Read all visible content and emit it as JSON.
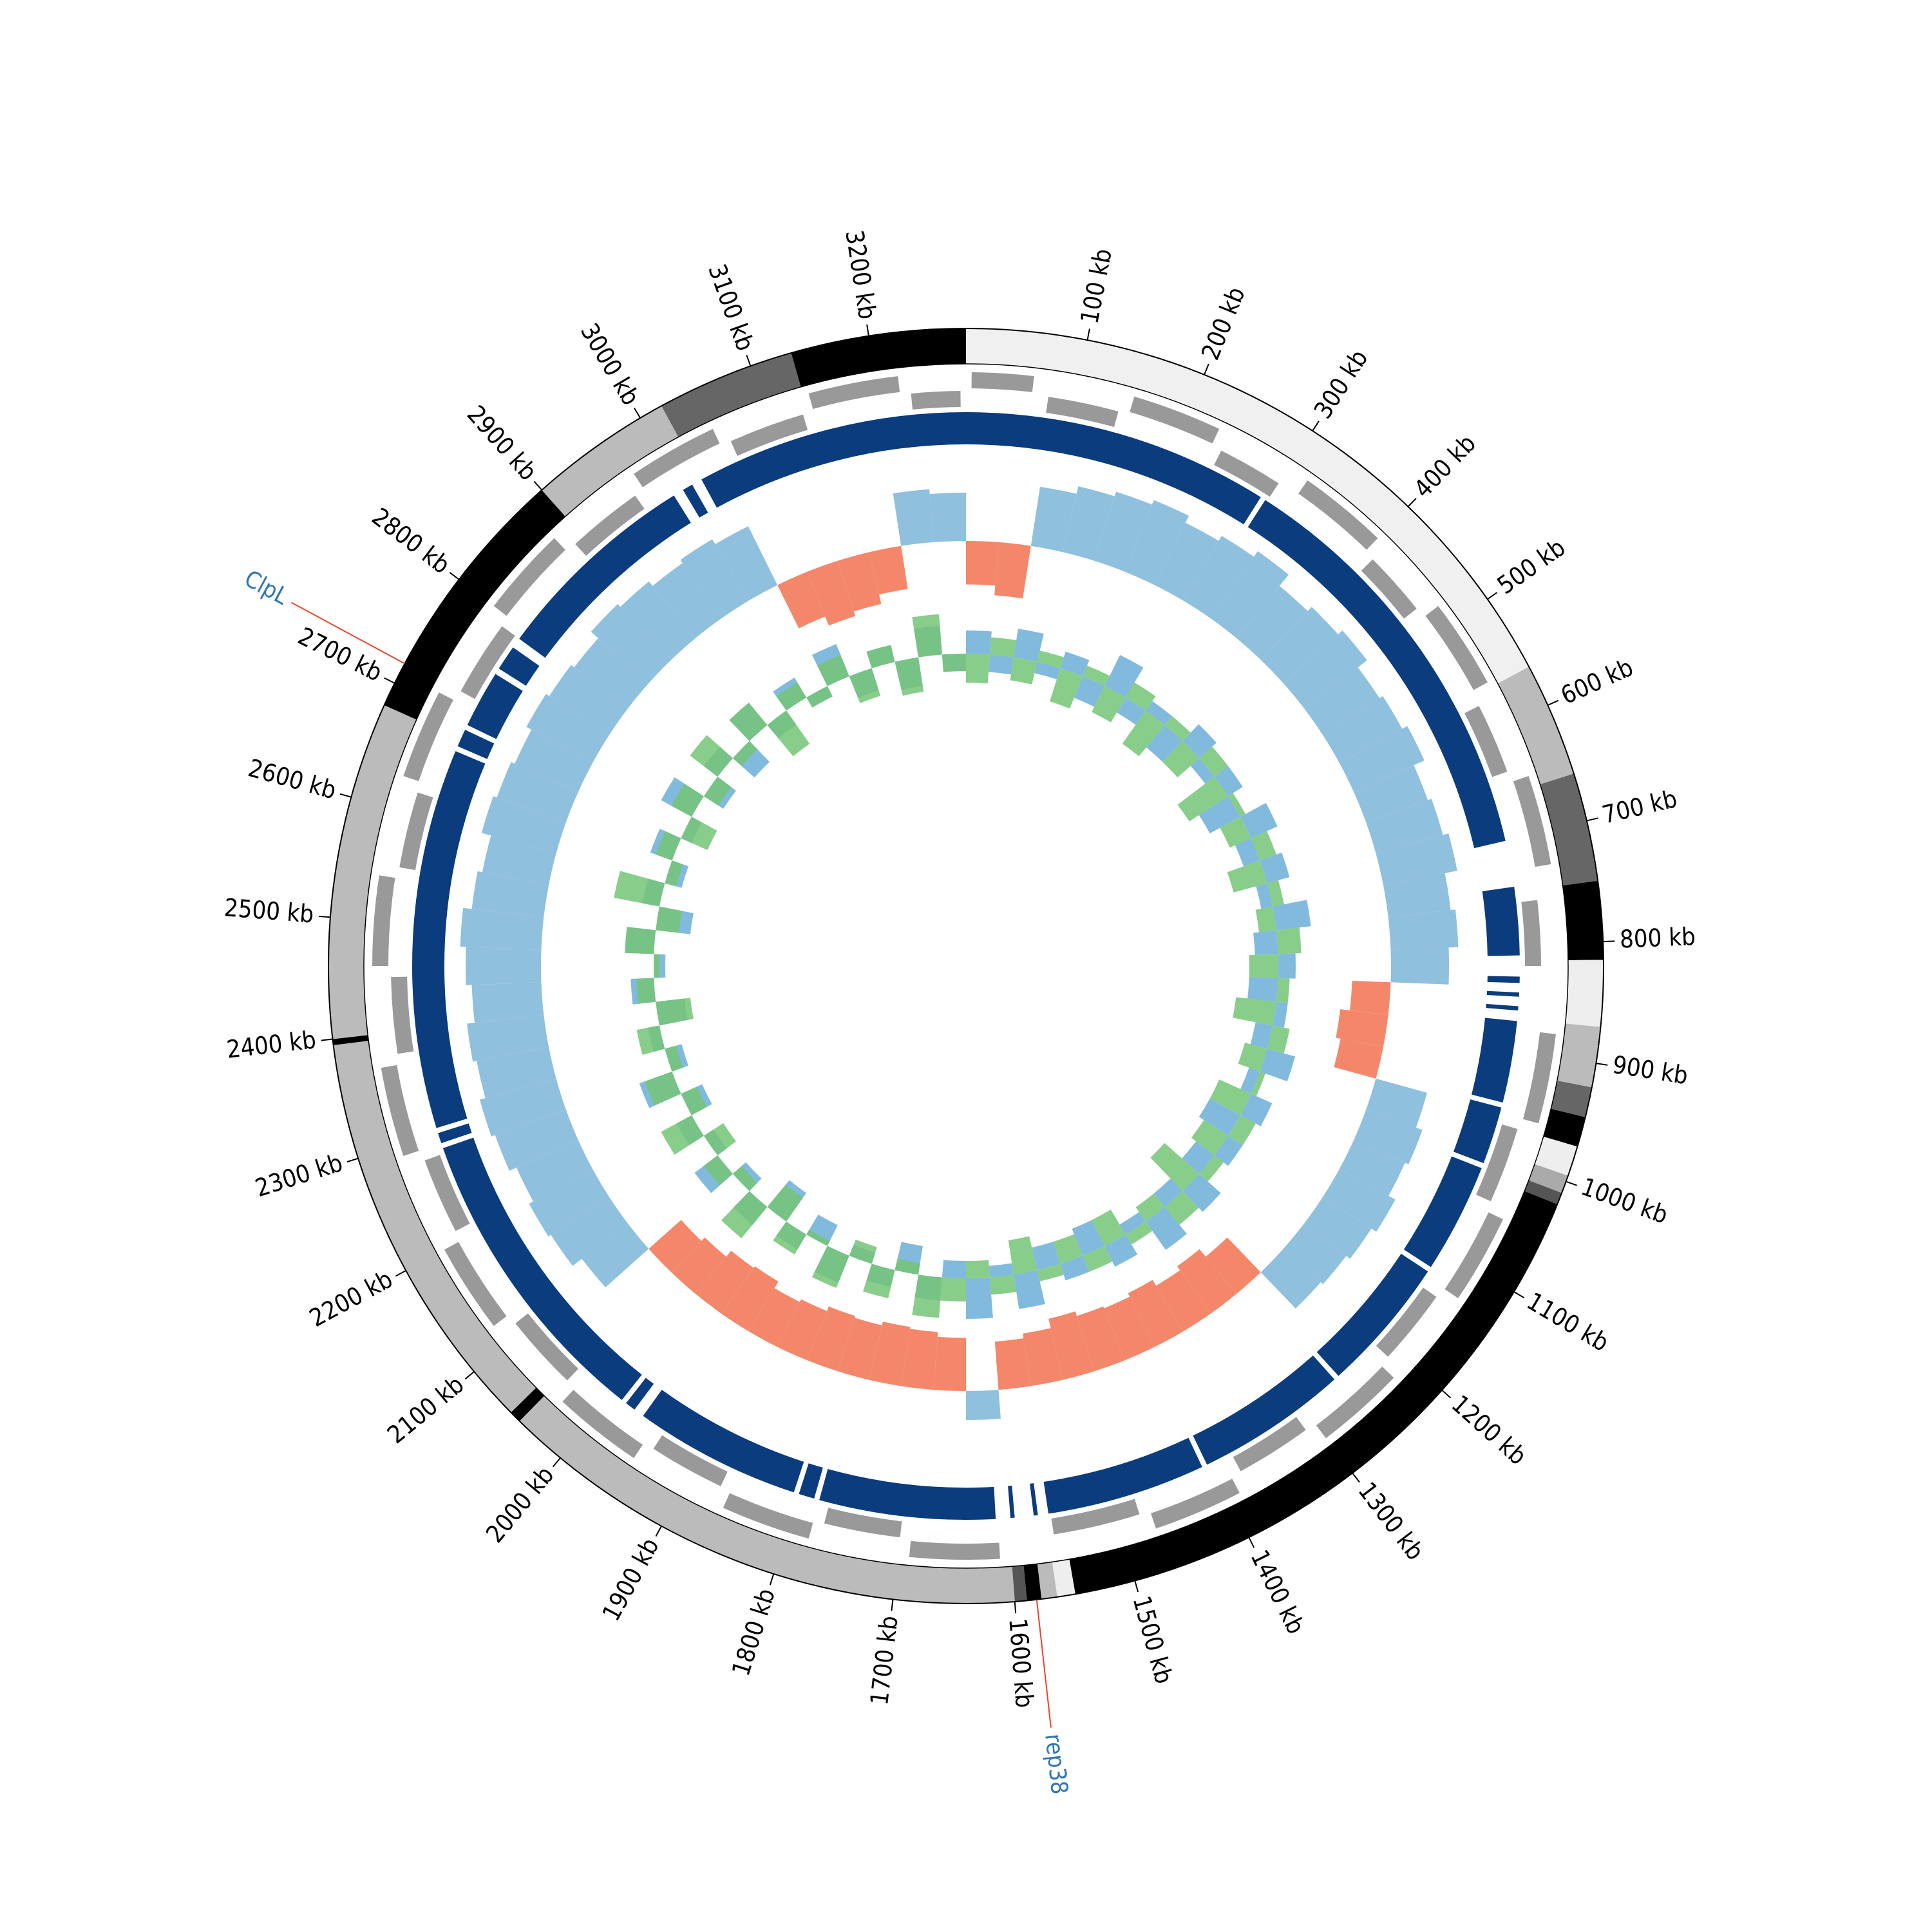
{
  "chart_data": {
    "type": "circular-genome",
    "xlim": [
      0,
      3280
    ],
    "xticks": [
      {
        "value": 100,
        "label": "100 kb"
      },
      {
        "value": 200,
        "label": "200 kb"
      },
      {
        "value": 300,
        "label": "300 kb"
      },
      {
        "value": 400,
        "label": "400 kb"
      },
      {
        "value": 500,
        "label": "500 kb"
      },
      {
        "value": 600,
        "label": "600 kb"
      },
      {
        "value": 700,
        "label": "700 kb"
      },
      {
        "value": 800,
        "label": "800 kb"
      },
      {
        "value": 900,
        "label": "900 kb"
      },
      {
        "value": 1000,
        "label": "1000 kb"
      },
      {
        "value": 1100,
        "label": "1100 kb"
      },
      {
        "value": 1200,
        "label": "1200 kb"
      },
      {
        "value": 1300,
        "label": "1300 kb"
      },
      {
        "value": 1400,
        "label": "1400 kb"
      },
      {
        "value": 1500,
        "label": "1500 kb"
      },
      {
        "value": 1600,
        "label": "1600 kb"
      },
      {
        "value": 1700,
        "label": "1700 kb"
      },
      {
        "value": 1800,
        "label": "1800 kb"
      },
      {
        "value": 1900,
        "label": "1900 kb"
      },
      {
        "value": 2000,
        "label": "2000 kb"
      },
      {
        "value": 2100,
        "label": "2100 kb"
      },
      {
        "value": 2200,
        "label": "2200 kb"
      },
      {
        "value": 2300,
        "label": "2300 kb"
      },
      {
        "value": 2400,
        "label": "2400 kb"
      },
      {
        "value": 2500,
        "label": "2500 kb"
      },
      {
        "value": 2600,
        "label": "2600 kb"
      },
      {
        "value": 2700,
        "label": "2700 kb"
      },
      {
        "value": 2800,
        "label": "2800 kb"
      },
      {
        "value": 2900,
        "label": "2900 kb"
      },
      {
        "value": 3000,
        "label": "3000 kb"
      },
      {
        "value": 3100,
        "label": "3100 kb"
      },
      {
        "value": 3200,
        "label": "3200 kb"
      }
    ],
    "annotations": [
      {
        "label": "ClpL",
        "position": 2718,
        "color": "#2e75b6",
        "line_color": "#e8452c"
      },
      {
        "label": "rep38",
        "position": 1582,
        "color": "#2e75b6",
        "line_color": "#e8452c"
      }
    ],
    "ideogram": [
      {
        "start": 0,
        "end": 565,
        "color": "#f0f0f0"
      },
      {
        "start": 565,
        "end": 660,
        "color": "#bbbbbb"
      },
      {
        "start": 660,
        "end": 750,
        "color": "#666666"
      },
      {
        "start": 750,
        "end": 815,
        "color": "#000000"
      },
      {
        "start": 815,
        "end": 870,
        "color": "#eeeeee"
      },
      {
        "start": 870,
        "end": 920,
        "color": "#bbbbbb"
      },
      {
        "start": 920,
        "end": 945,
        "color": "#666666"
      },
      {
        "start": 945,
        "end": 970,
        "color": "#000000"
      },
      {
        "start": 970,
        "end": 995,
        "color": "#eeeeee"
      },
      {
        "start": 995,
        "end": 1010,
        "color": "#aaaaaa"
      },
      {
        "start": 1010,
        "end": 1020,
        "color": "#555555"
      },
      {
        "start": 1020,
        "end": 1550,
        "color": "#000000"
      },
      {
        "start": 1550,
        "end": 1565,
        "color": "#eeeeee"
      },
      {
        "start": 1565,
        "end": 1578,
        "color": "#bbbbbb"
      },
      {
        "start": 1578,
        "end": 1590,
        "color": "#000000"
      },
      {
        "start": 1590,
        "end": 1600,
        "color": "#555555"
      },
      {
        "start": 1600,
        "end": 2045,
        "color": "#bbbbbb"
      },
      {
        "start": 2045,
        "end": 2055,
        "color": "#000000"
      },
      {
        "start": 2055,
        "end": 2395,
        "color": "#bbbbbb"
      },
      {
        "start": 2395,
        "end": 2400,
        "color": "#000000"
      },
      {
        "start": 2400,
        "end": 2680,
        "color": "#bbbbbb"
      },
      {
        "start": 2680,
        "end": 2900,
        "color": "#000000"
      },
      {
        "start": 2900,
        "end": 3020,
        "color": "#bbbbbb"
      },
      {
        "start": 3020,
        "end": 3135,
        "color": "#666666"
      },
      {
        "start": 3135,
        "end": 3280,
        "color": "#000000"
      }
    ],
    "genes": [
      {
        "start": 5,
        "end": 60,
        "strand": 1
      },
      {
        "start": 75,
        "end": 140,
        "strand": -1
      },
      {
        "start": 150,
        "end": 230,
        "strand": 1
      },
      {
        "start": 240,
        "end": 300,
        "strand": -1
      },
      {
        "start": 320,
        "end": 400,
        "strand": 1
      },
      {
        "start": 410,
        "end": 470,
        "strand": -1
      },
      {
        "start": 480,
        "end": 560,
        "strand": 1
      },
      {
        "start": 575,
        "end": 640,
        "strand": -1
      },
      {
        "start": 650,
        "end": 730,
        "strand": 1
      },
      {
        "start": 760,
        "end": 820,
        "strand": -1
      },
      {
        "start": 880,
        "end": 960,
        "strand": 1
      },
      {
        "start": 970,
        "end": 1040,
        "strand": -1
      },
      {
        "start": 1050,
        "end": 1130,
        "strand": 1
      },
      {
        "start": 1140,
        "end": 1210,
        "strand": -1
      },
      {
        "start": 1220,
        "end": 1300,
        "strand": 1
      },
      {
        "start": 1310,
        "end": 1380,
        "strand": -1
      },
      {
        "start": 1390,
        "end": 1470,
        "strand": 1
      },
      {
        "start": 1480,
        "end": 1560,
        "strand": -1
      },
      {
        "start": 1610,
        "end": 1690,
        "strand": 1
      },
      {
        "start": 1700,
        "end": 1770,
        "strand": -1
      },
      {
        "start": 1780,
        "end": 1860,
        "strand": 1
      },
      {
        "start": 1870,
        "end": 1940,
        "strand": -1
      },
      {
        "start": 1950,
        "end": 2030,
        "strand": 1
      },
      {
        "start": 2040,
        "end": 2110,
        "strand": -1
      },
      {
        "start": 2120,
        "end": 2200,
        "strand": 1
      },
      {
        "start": 2210,
        "end": 2280,
        "strand": -1
      },
      {
        "start": 2290,
        "end": 2370,
        "strand": 1
      },
      {
        "start": 2380,
        "end": 2450,
        "strand": -1
      },
      {
        "start": 2460,
        "end": 2540,
        "strand": 1
      },
      {
        "start": 2550,
        "end": 2620,
        "strand": -1
      },
      {
        "start": 2630,
        "end": 2710,
        "strand": 1
      },
      {
        "start": 2720,
        "end": 2790,
        "strand": -1
      },
      {
        "start": 2800,
        "end": 2880,
        "strand": 1
      },
      {
        "start": 2890,
        "end": 2960,
        "strand": -1
      },
      {
        "start": 2970,
        "end": 3050,
        "strand": 1
      },
      {
        "start": 3060,
        "end": 3130,
        "strand": -1
      },
      {
        "start": 3140,
        "end": 3220,
        "strand": 1
      },
      {
        "start": 3230,
        "end": 3275,
        "strand": -1
      }
    ],
    "gene_color": "#999999",
    "contigs": [
      [
        0,
        293
      ],
      [
        298,
        701
      ],
      [
        745,
        810
      ],
      [
        830,
        836
      ],
      [
        845,
        849
      ],
      [
        858,
        862
      ],
      [
        872,
        950
      ],
      [
        955,
        1010
      ],
      [
        1015,
        1120
      ],
      [
        1125,
        1255
      ],
      [
        1260,
        1405
      ],
      [
        1410,
        1562
      ],
      [
        1572,
        1576
      ],
      [
        1594,
        1598
      ],
      [
        1612,
        1780
      ],
      [
        1785,
        1800
      ],
      [
        1805,
        1965
      ],
      [
        1975,
        1985
      ],
      [
        1990,
        2285
      ],
      [
        2290,
        2300
      ],
      [
        2305,
        2668
      ],
      [
        2673,
        2690
      ],
      [
        2695,
        2750
      ],
      [
        2756,
        2780
      ],
      [
        2790,
        2990
      ],
      [
        3000,
        3010
      ],
      [
        3020,
        3280
      ]
    ],
    "contig_color": "#0b3c7d",
    "bins": [
      0,
      40,
      80,
      120,
      160,
      200,
      240,
      280,
      320,
      360,
      400,
      440,
      480,
      520,
      560,
      600,
      640,
      680,
      720,
      760,
      800,
      840,
      880,
      920,
      960,
      1000,
      1040,
      1080,
      1120,
      1160,
      1200,
      1240,
      1280,
      1320,
      1360,
      1400,
      1440,
      1480,
      1520,
      1560,
      1600,
      1640,
      1680,
      1720,
      1760,
      1800,
      1840,
      1880,
      1920,
      1960,
      2000,
      2040,
      2080,
      2120,
      2160,
      2200,
      2240,
      2280,
      2320,
      2360,
      2400,
      2440,
      2480,
      2520,
      2560,
      2600,
      2640,
      2680,
      2720,
      2760,
      2800,
      2840,
      2880,
      2920,
      2960,
      3000,
      3040,
      3080,
      3120,
      3160,
      3200,
      3240,
      3280
    ],
    "coverage": {
      "ylim": [
        -1,
        1
      ],
      "pos_color": "#8fc0de",
      "neg_color": "#f4876a",
      "values": [
        -0.45,
        -0.55,
        0.62,
        0.7,
        0.75,
        0.8,
        0.72,
        0.78,
        0.85,
        0.7,
        0.76,
        0.82,
        0.7,
        0.74,
        0.8,
        0.68,
        0.72,
        0.78,
        0.65,
        0.7,
        0.6,
        -0.4,
        -0.5,
        -0.45,
        0.55,
        0.62,
        0.58,
        0.66,
        0.6,
        0.55,
        0.52,
        -0.5,
        -0.6,
        -0.55,
        -0.62,
        -0.58,
        -0.6,
        -0.65,
        -0.55,
        -0.5,
        0.3,
        -0.55,
        -0.6,
        -0.62,
        -0.58,
        -0.6,
        -0.55,
        -0.52,
        -0.6,
        -0.58,
        -0.5,
        -0.45,
        0.6,
        0.72,
        0.75,
        0.7,
        0.78,
        0.82,
        0.76,
        0.8,
        0.72,
        0.78,
        0.84,
        0.75,
        0.7,
        0.8,
        0.76,
        0.72,
        0.78,
        0.74,
        0.7,
        0.8,
        0.76,
        0.7,
        0.74,
        0.68,
        -0.5,
        -0.6,
        -0.55,
        -0.45,
        0.55,
        0.5
      ]
    },
    "skew": {
      "ylim": [
        -1,
        1
      ],
      "series": [
        {
          "color": "#6baed6",
          "values": [
            0.4,
            -0.3,
            0.5,
            -0.2,
            0.3,
            -0.4,
            0.6,
            -0.3,
            0.2,
            -0.5,
            0.4,
            -0.2,
            0.3,
            -0.6,
            0.5,
            -0.3,
            0.4,
            -0.2,
            0.6,
            -0.4,
            0.3,
            -0.5,
            0.2,
            -0.3,
            0.5,
            -0.2,
            0.4,
            -0.6,
            0.3,
            -0.4,
            0.5,
            -0.3,
            0.6,
            -0.2,
            0.4,
            -0.5,
            0.3,
            -0.4,
            0.6,
            -0.2,
            0.7,
            -0.3,
            0.4,
            -0.5,
            0.3,
            -0.2,
            0.5,
            -0.4,
            0.3,
            -0.6,
            0.4,
            -0.3,
            0.5,
            -0.2,
            0.3,
            -0.4,
            0.6,
            -0.3,
            0.2,
            -0.5,
            0.4,
            -0.2,
            0.5,
            -0.6,
            0.3,
            -0.3,
            0.4,
            -0.2,
            0.6,
            -0.4,
            0.3,
            -0.5,
            0.5,
            -0.3,
            0.4,
            -0.2,
            0.6,
            -0.4,
            0.3,
            -0.5,
            0.5,
            -0.3
          ]
        },
        {
          "color": "#74c476",
          "values": [
            -0.5,
            0.3,
            -0.4,
            0.2,
            -0.6,
            0.2,
            -0.5,
            0.3,
            -0.7,
            0.2,
            -0.5,
            0.3,
            -0.8,
            0.1,
            -0.4,
            0.3,
            -0.6,
            0.2,
            -0.3,
            0.4,
            -0.5,
            0.2,
            -0.7,
            0.3,
            -0.4,
            0.1,
            -0.6,
            0.3,
            -0.5,
            0.2,
            -0.8,
            0.4,
            -0.3,
            0.2,
            -0.5,
            0.3,
            -0.4,
            0.2,
            -0.6,
            0.3,
            -0.3,
            0.4,
            0.7,
            -0.2,
            0.5,
            -0.3,
            0.6,
            -0.1,
            0.4,
            -0.5,
            0.7,
            -0.2,
            0.3,
            -0.4,
            0.6,
            -0.3,
            0.5,
            -0.2,
            0.4,
            -0.6,
            0.3,
            -0.1,
            0.5,
            -0.4,
            0.8,
            -0.2,
            0.3,
            -0.5,
            0.4,
            -0.3,
            0.6,
            -0.2,
            0.5,
            -0.7,
            0.3,
            -0.2,
            0.4,
            -0.5,
            0.3,
            -0.6,
            0.7,
            -0.3
          ]
        }
      ]
    }
  }
}
